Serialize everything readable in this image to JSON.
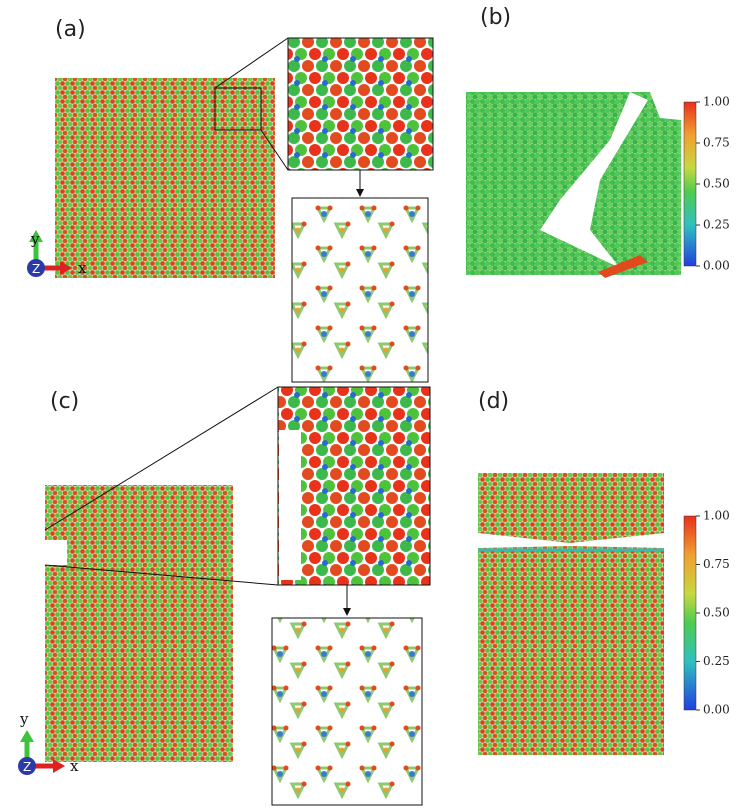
{
  "panels": [
    {
      "label": "(a)",
      "axes": {
        "y": "y",
        "x": "x",
        "z": "Z"
      }
    },
    {
      "label": "(b)",
      "colorbar": {
        "ticks": [
          "1.00",
          "0.75",
          "0.50",
          "0.25",
          "0.00"
        ]
      }
    },
    {
      "label": "(c)",
      "axes": {
        "y": "y",
        "x": "x",
        "z": "Z"
      }
    },
    {
      "label": "(d)",
      "colorbar": {
        "ticks": [
          "1.00",
          "0.75",
          "0.50",
          "0.25",
          "0.00"
        ]
      }
    }
  ]
}
